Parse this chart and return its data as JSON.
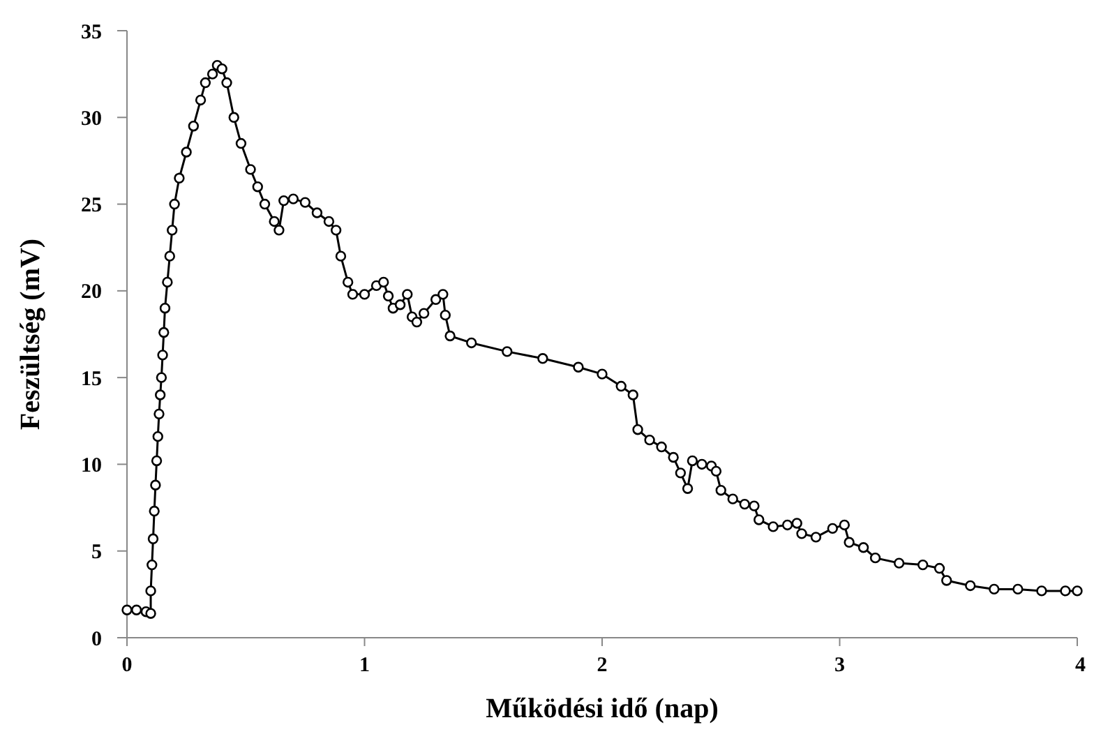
{
  "chart_data": {
    "type": "line",
    "xlabel": "Működési idő (nap)",
    "ylabel": "Feszültség (mV)",
    "xlim": [
      0,
      4
    ],
    "ylim": [
      0,
      35
    ],
    "xticks": [
      0,
      1,
      2,
      3,
      4
    ],
    "yticks": [
      0,
      5,
      10,
      15,
      20,
      25,
      30,
      35
    ],
    "grid": false,
    "marker": "circle",
    "line_style": "solid",
    "series": [
      {
        "color": "#000000",
        "x": [
          0,
          0.04,
          0.08,
          0.1,
          0.1,
          0.105,
          0.11,
          0.115,
          0.12,
          0.125,
          0.13,
          0.135,
          0.14,
          0.145,
          0.15,
          0.155,
          0.16,
          0.17,
          0.18,
          0.19,
          0.2,
          0.22,
          0.25,
          0.28,
          0.31,
          0.33,
          0.36,
          0.38,
          0.4,
          0.42,
          0.45,
          0.48,
          0.52,
          0.55,
          0.58,
          0.62,
          0.64,
          0.66,
          0.7,
          0.75,
          0.8,
          0.85,
          0.88,
          0.9,
          0.93,
          0.95,
          1.0,
          1.05,
          1.08,
          1.1,
          1.12,
          1.15,
          1.18,
          1.2,
          1.22,
          1.25,
          1.3,
          1.33,
          1.34,
          1.36,
          1.45,
          1.6,
          1.75,
          1.9,
          2.0,
          2.08,
          2.13,
          2.15,
          2.2,
          2.25,
          2.3,
          2.33,
          2.36,
          2.38,
          2.42,
          2.46,
          2.48,
          2.5,
          2.55,
          2.6,
          2.64,
          2.66,
          2.72,
          2.78,
          2.82,
          2.84,
          2.9,
          2.97,
          3.02,
          3.04,
          3.1,
          3.15,
          3.25,
          3.35,
          3.42,
          3.45,
          3.55,
          3.65,
          3.75,
          3.85,
          3.95,
          4.0
        ],
        "values": [
          1.6,
          1.6,
          1.5,
          1.4,
          2.7,
          4.2,
          5.7,
          7.3,
          8.8,
          10.2,
          11.6,
          12.9,
          14,
          15,
          16.3,
          17.6,
          19,
          20.5,
          22,
          23.5,
          25,
          26.5,
          28,
          29.5,
          31,
          32,
          32.5,
          33,
          32.8,
          32,
          30,
          28.5,
          27,
          26,
          25,
          24,
          23.5,
          25.2,
          25.3,
          25.1,
          24.5,
          24,
          23.5,
          22,
          20.5,
          19.8,
          19.8,
          20.3,
          20.5,
          19.7,
          19,
          19.2,
          19.8,
          18.5,
          18.2,
          18.7,
          19.5,
          19.8,
          18.6,
          17.4,
          17,
          16.5,
          16.1,
          15.6,
          15.2,
          14.5,
          14,
          12,
          11.4,
          11,
          10.4,
          9.5,
          8.6,
          10.2,
          10,
          9.9,
          9.6,
          8.5,
          8,
          7.7,
          7.6,
          6.8,
          6.4,
          6.5,
          6.6,
          6,
          5.8,
          6.3,
          6.5,
          5.5,
          5.2,
          4.6,
          4.3,
          4.2,
          4,
          3.3,
          3,
          2.8,
          2.8,
          2.7,
          2.7,
          2.7
        ]
      }
    ]
  }
}
